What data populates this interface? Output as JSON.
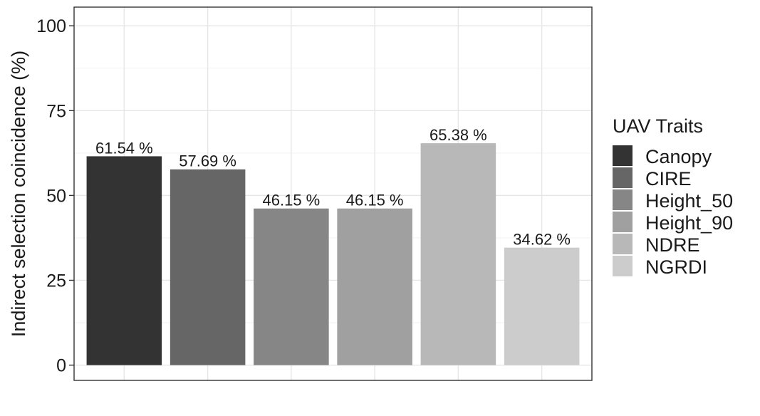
{
  "chart_data": {
    "type": "bar",
    "title": "",
    "xlabel": "",
    "ylabel": "Indirect selection coincidence (%)",
    "ylim": [
      0,
      105
    ],
    "yticks": [
      0,
      25,
      50,
      75,
      100
    ],
    "grid": true,
    "categories": [
      "Canopy",
      "CIRE",
      "Height_50",
      "Height_90",
      "NDRE",
      "NGRDI"
    ],
    "values": [
      61.54,
      57.69,
      46.15,
      46.15,
      65.38,
      34.62
    ],
    "data_labels": [
      "61.54 %",
      "57.69 %",
      "46.15 %",
      "46.15 %",
      "65.38 %",
      "34.62 %"
    ],
    "colors": [
      "#333333",
      "#666666",
      "#868686",
      "#a0a0a0",
      "#b8b8b8",
      "#cccccc"
    ],
    "legend": {
      "title": "UAV Traits",
      "position": "right",
      "entries": [
        "Canopy",
        "CIRE",
        "Height_50",
        "Height_90",
        "NDRE",
        "NGRDI"
      ]
    }
  }
}
